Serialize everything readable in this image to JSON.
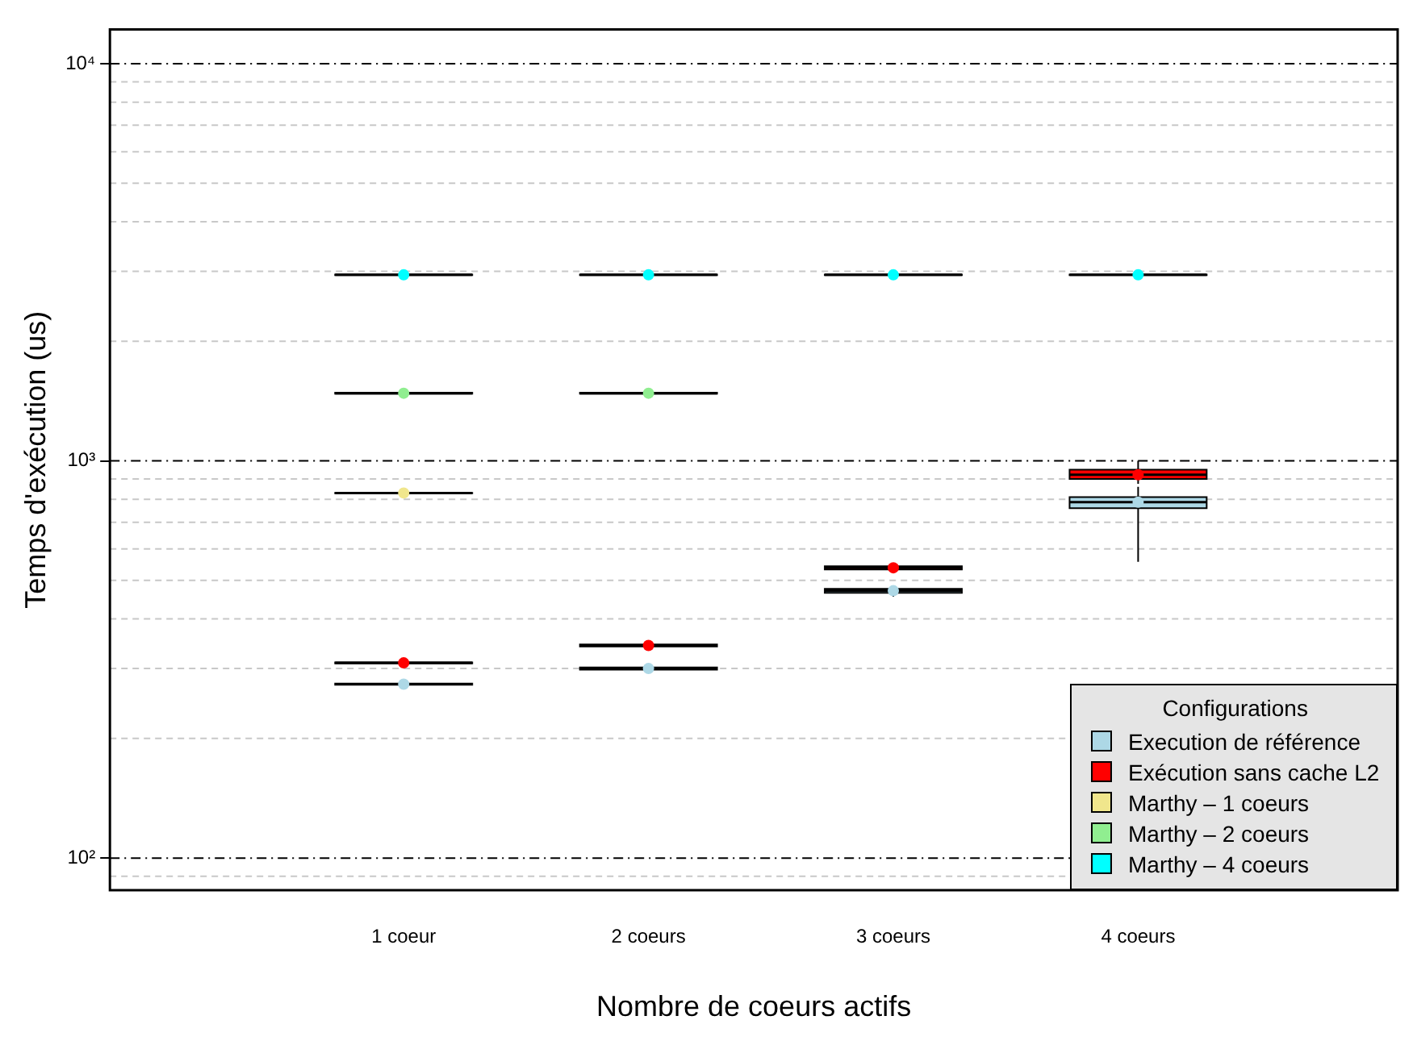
{
  "chart_data": {
    "type": "box",
    "xlabel": "Nombre de coeurs actifs",
    "ylabel": "Temps d'exécution (us)",
    "legend_title": "Configurations",
    "legend": "bottom right",
    "log": "y",
    "grid": "y",
    "marker": "circle",
    "categories": [
      "1 coeur",
      "2 coeurs",
      "3 coeurs",
      "4 coeurs"
    ],
    "ylim": [
      83,
      12200
    ],
    "yticks": [
      {
        "value": 90,
        "label": null
      },
      {
        "value": 100,
        "label": "10²"
      },
      {
        "value": 200,
        "label": null
      },
      {
        "value": 300,
        "label": null
      },
      {
        "value": 400,
        "label": null
      },
      {
        "value": 500,
        "label": null
      },
      {
        "value": 600,
        "label": null
      },
      {
        "value": 700,
        "label": null
      },
      {
        "value": 800,
        "label": null
      },
      {
        "value": 900,
        "label": null
      },
      {
        "value": 1000,
        "label": "10³"
      },
      {
        "value": 2000,
        "label": null
      },
      {
        "value": 3000,
        "label": null
      },
      {
        "value": 4000,
        "label": null
      },
      {
        "value": 5000,
        "label": null
      },
      {
        "value": 6000,
        "label": null
      },
      {
        "value": 7000,
        "label": null
      },
      {
        "value": 8000,
        "label": null
      },
      {
        "value": 9000,
        "label": null
      },
      {
        "value": 10000,
        "label": "10⁴"
      }
    ],
    "series": [
      {
        "name": "Execution de référence",
        "color": "#add8e6",
        "boxes": [
          {
            "low": 271,
            "q1": 273,
            "median": 274,
            "q3": 275,
            "high": 277
          },
          {
            "low": 296,
            "q1": 298,
            "median": 300,
            "q3": 302,
            "high": 305
          },
          {
            "low": 455,
            "q1": 465,
            "median": 471,
            "q3": 476,
            "high": 480
          },
          {
            "low": 557,
            "q1": 760,
            "median": 787,
            "q3": 810,
            "high": 860
          }
        ]
      },
      {
        "name": "Exécution sans cache L2",
        "color": "#ff0000",
        "boxes": [
          {
            "low": 306,
            "q1": 309,
            "median": 310,
            "q3": 311,
            "high": 313
          },
          {
            "low": 338,
            "q1": 341,
            "median": 343,
            "q3": 345,
            "high": 348
          },
          {
            "low": 525,
            "q1": 533,
            "median": 538,
            "q3": 543,
            "high": 550
          },
          {
            "low": 875,
            "q1": 900,
            "median": 923,
            "q3": 950,
            "high": 1000
          }
        ]
      },
      {
        "name": "Marthy – 1 coeurs",
        "color": "#f0e68c",
        "boxes": [
          {
            "low": 825,
            "q1": 829,
            "median": 830,
            "q3": 831,
            "high": 835
          },
          null,
          null,
          null
        ]
      },
      {
        "name": "Marthy – 2 coeurs",
        "color": "#90ee90",
        "boxes": [
          {
            "low": 1470,
            "q1": 1476,
            "median": 1480,
            "q3": 1484,
            "high": 1490
          },
          {
            "low": 1470,
            "q1": 1476,
            "median": 1480,
            "q3": 1484,
            "high": 1490
          },
          null,
          null
        ]
      },
      {
        "name": "Marthy – 4 coeurs",
        "color": "#00ffff",
        "boxes": [
          {
            "low": 2920,
            "q1": 2935,
            "median": 2940,
            "q3": 2945,
            "high": 2960
          },
          {
            "low": 2920,
            "q1": 2935,
            "median": 2940,
            "q3": 2945,
            "high": 2960
          },
          {
            "low": 2920,
            "q1": 2935,
            "median": 2940,
            "q3": 2945,
            "high": 2960
          },
          {
            "low": 2920,
            "q1": 2935,
            "median": 2940,
            "q3": 2945,
            "high": 2960
          }
        ]
      },
      {
        "type": "scatter",
        "color": "#add8e6",
        "x": [
          "1 coeur",
          "2 coeurs",
          "3 coeurs",
          "4 coeurs"
        ],
        "values": [
          274,
          300,
          471,
          787
        ]
      },
      {
        "type": "scatter",
        "color": "#ff0000",
        "x": [
          "1 coeur",
          "2 coeurs",
          "3 coeurs",
          "4 coeurs"
        ],
        "values": [
          310,
          343,
          538,
          923
        ]
      },
      {
        "type": "scatter",
        "color": "#f0e68c",
        "x": [
          "1 coeur"
        ],
        "values": [
          830
        ]
      },
      {
        "type": "scatter",
        "color": "#90ee90",
        "x": [
          "1 coeur",
          "2 coeurs"
        ],
        "values": [
          1480,
          1480
        ]
      },
      {
        "type": "scatter",
        "color": "#00ffff",
        "x": [
          "1 coeur",
          "2 coeurs",
          "3 coeurs",
          "4 coeurs"
        ],
        "values": [
          2940,
          2940,
          2940,
          2940
        ]
      }
    ]
  }
}
